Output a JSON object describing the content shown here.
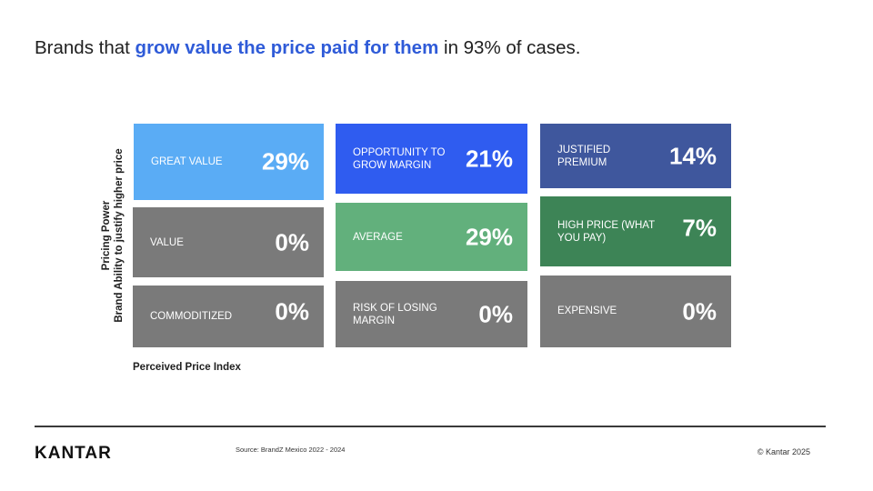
{
  "headline": {
    "prefix": "Brands that ",
    "highlight": "grow value the price paid for them",
    "suffix": " in 93% of cases."
  },
  "axes": {
    "y_line1": "Pricing Power",
    "y_line2": "Brand Ability to justify  higher price",
    "x_label": "Perceived Price Index"
  },
  "colors": {
    "light_blue": "#5aacf5",
    "blue": "#2f5cf0",
    "navy": "#3f579d",
    "grey": "#7a7a7a",
    "green_light": "#62b07c",
    "green_dark": "#3d8456"
  },
  "matrix": {
    "great_value": {
      "label": "GREAT VALUE",
      "value": "29%"
    },
    "opportunity": {
      "label": "OPPORTUNITY TO GROW MARGIN",
      "value": "21%"
    },
    "justified_premium": {
      "label": "JUSTIFIED PREMIUM",
      "value": "14%"
    },
    "value": {
      "label": "VALUE",
      "value": "0%"
    },
    "average": {
      "label": "AVERAGE",
      "value": "29%"
    },
    "high_price": {
      "label": "HIGH PRICE (WHAT YOU PAY)",
      "value": "7%"
    },
    "commoditized": {
      "label": "COMMODITIZED",
      "value": "0%"
    },
    "risk": {
      "label": "RISK OF LOSING MARGIN",
      "value": "0%"
    },
    "expensive": {
      "label": "EXPENSIVE",
      "value": "0%"
    }
  },
  "footer": {
    "logo": "KANTAR",
    "source": "Source: BrandZ Mexico 2022  - 2024",
    "copyright": "© Kantar 2025"
  }
}
